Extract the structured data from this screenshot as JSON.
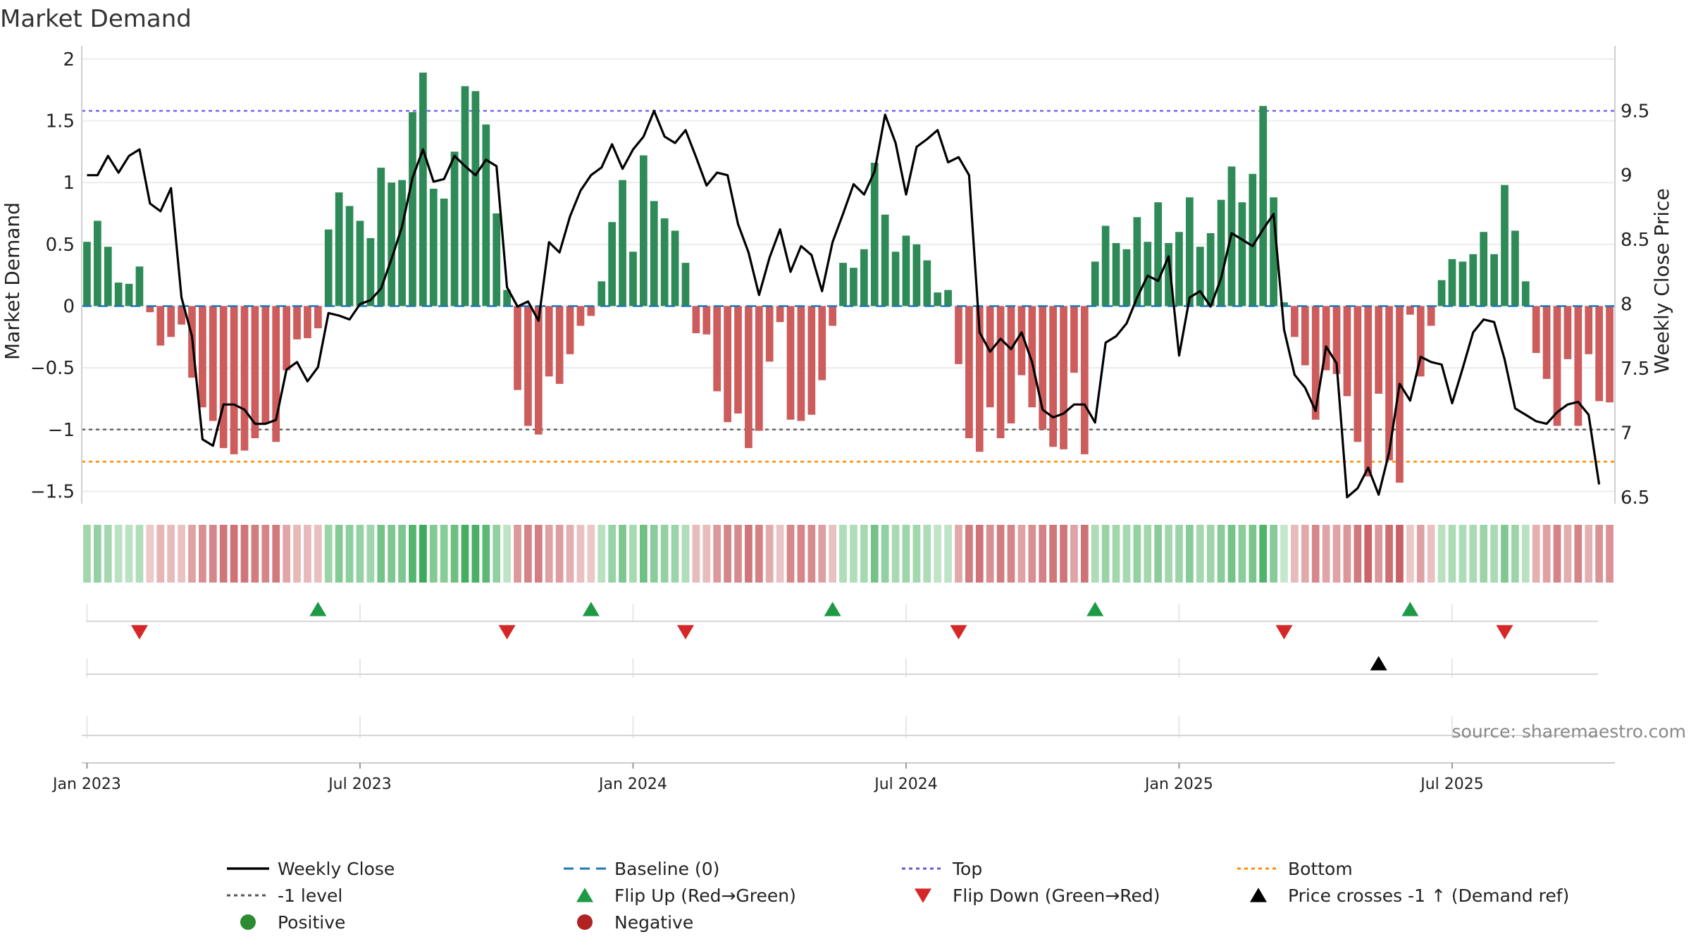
{
  "chart_data": {
    "type": "bar",
    "title": "Market Demand",
    "ylabel": "Market Demand",
    "y2label": "Weekly Close Price",
    "ylim": [
      -1.6,
      2.05
    ],
    "y2lim": [
      6.45,
      9.95
    ],
    "yticks": [
      -1.5,
      -1,
      -0.5,
      0,
      0.5,
      1,
      1.5,
      2
    ],
    "ytick_labels": [
      "−1.5",
      "−1",
      "−0.5",
      "0",
      "0.5",
      "1",
      "1.5",
      "2"
    ],
    "y2ticks": [
      6.5,
      7,
      7.5,
      8,
      8.5,
      9,
      9.5
    ],
    "y2tick_labels": [
      "6.5",
      "7",
      "7.5",
      "8",
      "8.5",
      "9",
      "9.5"
    ],
    "x_start": "2023-01-02",
    "x_tick_labels": [
      "Jan 2023",
      "Jul 2023",
      "Jan 2024",
      "Jul 2024",
      "Jan 2025",
      "Jul 2025"
    ],
    "x_tick_weeks": [
      0,
      26,
      52,
      78,
      104,
      130
    ],
    "reference_lines": {
      "top": 1.58,
      "neg_one_level": -1.0,
      "bottom": -1.26,
      "baseline": 0
    },
    "demand": [
      0.52,
      0.69,
      0.48,
      0.19,
      0.18,
      0.32,
      -0.05,
      -0.32,
      -0.25,
      -0.15,
      -0.58,
      -0.82,
      -0.93,
      -1.15,
      -1.2,
      -1.17,
      -1.07,
      -0.95,
      -1.1,
      -0.52,
      -0.27,
      -0.26,
      -0.18,
      0.62,
      0.92,
      0.81,
      0.69,
      0.55,
      1.12,
      1.0,
      1.02,
      1.57,
      1.89,
      0.95,
      0.87,
      1.25,
      1.78,
      1.74,
      1.47,
      0.75,
      0.13,
      -0.68,
      -0.97,
      -1.04,
      -0.57,
      -0.63,
      -0.39,
      -0.16,
      -0.08,
      0.2,
      0.68,
      1.02,
      0.44,
      1.22,
      0.85,
      0.71,
      0.61,
      0.35,
      -0.22,
      -0.23,
      -0.69,
      -0.94,
      -0.87,
      -1.15,
      -1.01,
      -0.45,
      -0.13,
      -0.92,
      -0.93,
      -0.88,
      -0.6,
      -0.16,
      0.35,
      0.31,
      0.46,
      1.16,
      0.74,
      0.44,
      0.57,
      0.5,
      0.37,
      0.11,
      0.13,
      -0.47,
      -1.07,
      -1.18,
      -0.82,
      -1.07,
      -0.95,
      -0.56,
      -0.82,
      -1.0,
      -1.14,
      -1.16,
      -0.54,
      -1.2,
      0.36,
      0.65,
      0.51,
      0.46,
      0.72,
      0.52,
      0.84,
      0.51,
      0.6,
      0.88,
      0.48,
      0.59,
      0.86,
      1.13,
      0.84,
      1.07,
      1.62,
      0.88,
      0.03,
      -0.25,
      -0.48,
      -0.92,
      -0.52,
      -0.55,
      -0.73,
      -1.1,
      -1.38,
      -0.71,
      -1.25,
      -1.43,
      -0.07,
      -0.57,
      -0.16,
      0.21,
      0.38,
      0.36,
      0.42,
      0.6,
      0.42,
      0.98,
      0.61,
      0.2,
      -0.38,
      -0.59,
      -0.97,
      -0.43,
      -0.97,
      -0.39,
      -0.77,
      -0.78
    ],
    "close": [
      9.0,
      9.0,
      9.15,
      9.02,
      9.15,
      9.2,
      8.78,
      8.72,
      8.9,
      8.05,
      7.75,
      6.95,
      6.9,
      7.22,
      7.22,
      7.18,
      7.07,
      7.07,
      7.1,
      7.49,
      7.55,
      7.4,
      7.51,
      7.93,
      7.91,
      7.88,
      8.0,
      8.03,
      8.12,
      8.35,
      8.6,
      8.98,
      9.2,
      8.95,
      8.97,
      9.15,
      9.07,
      9.0,
      9.12,
      9.07,
      8.13,
      7.98,
      8.02,
      7.87,
      8.48,
      8.4,
      8.68,
      8.88,
      9.0,
      9.06,
      9.24,
      9.05,
      9.2,
      9.3,
      9.5,
      9.3,
      9.25,
      9.35,
      9.14,
      8.92,
      9.02,
      9.0,
      8.62,
      8.4,
      8.07,
      8.36,
      8.58,
      8.25,
      8.45,
      8.38,
      8.1,
      8.48,
      8.7,
      8.93,
      8.85,
      9.03,
      9.47,
      9.25,
      8.85,
      9.22,
      9.28,
      9.35,
      9.1,
      9.14,
      9.0,
      7.78,
      7.63,
      7.73,
      7.65,
      7.78,
      7.55,
      7.18,
      7.12,
      7.15,
      7.22,
      7.22,
      7.08,
      7.7,
      7.75,
      7.85,
      8.05,
      8.22,
      8.18,
      8.37,
      7.6,
      8.05,
      8.1,
      7.98,
      8.2,
      8.55,
      8.5,
      8.45,
      8.58,
      8.7,
      7.8,
      7.45,
      7.35,
      7.17,
      7.67,
      7.54,
      6.5,
      6.57,
      6.73,
      6.52,
      6.85,
      7.38,
      7.25,
      7.59,
      7.55,
      7.53,
      7.23,
      7.5,
      7.78,
      7.88,
      7.86,
      7.57,
      7.19,
      7.14,
      7.09,
      7.07,
      7.16,
      7.22,
      7.24,
      7.14,
      6.6
    ],
    "flip_up_weeks": [
      22,
      48,
      71,
      96,
      126
    ],
    "flip_down_weeks": [
      5,
      40,
      57,
      83,
      114,
      135
    ],
    "price_cross_weeks": [
      123
    ],
    "colors": {
      "positive_bar": "#2e8b57",
      "negative_bar": "#cd5c5c",
      "close_line": "#000000",
      "baseline": "#1f77b4",
      "top": "#7b68ee",
      "neg_one_level": "#666666",
      "bottom": "#ff8c00",
      "flip_up": "#1e9a46",
      "flip_down": "#d62728",
      "price_cross": "#000000",
      "positive_dot": "#2a8b32",
      "negative_dot": "#b22222"
    },
    "legend": [
      {
        "label": "Weekly Close",
        "kind": "line",
        "color": "#000000"
      },
      {
        "label": "Baseline (0)",
        "kind": "dash",
        "color": "#1f77b4"
      },
      {
        "label": "Top",
        "kind": "dot",
        "color": "#6a5acd"
      },
      {
        "label": "Bottom",
        "kind": "dot",
        "color": "#ff8c00"
      },
      {
        "label": "-1 level",
        "kind": "dot",
        "color": "#555555"
      },
      {
        "label": "Flip Up (Red→Green)",
        "kind": "tri-up",
        "color": "#1e9a46"
      },
      {
        "label": "Flip Down (Green→Red)",
        "kind": "tri-down",
        "color": "#d62728"
      },
      {
        "label": "Price crosses -1 ↑ (Demand ref)",
        "kind": "tri-up",
        "color": "#000000"
      },
      {
        "label": "Positive",
        "kind": "circle",
        "color": "#2a8b32"
      },
      {
        "label": "Negative",
        "kind": "circle",
        "color": "#b22222"
      }
    ],
    "source": "source: sharemaestro.com"
  }
}
